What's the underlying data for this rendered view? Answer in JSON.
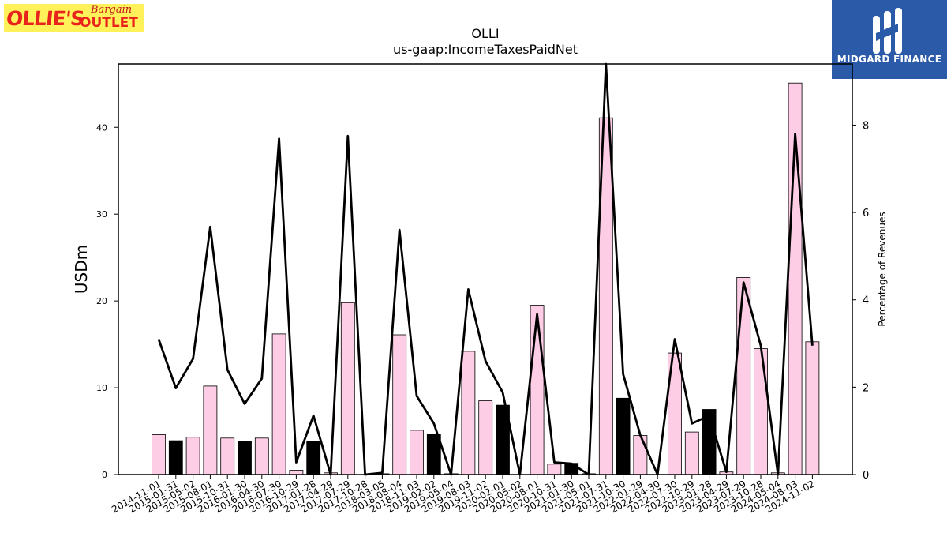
{
  "logos": {
    "left": {
      "word1": "OLLIE'S",
      "word2": "Bargain",
      "word3": "OUTLET"
    },
    "right": {
      "name": "MIDGARD FINANCE"
    }
  },
  "colors": {
    "bar_pink": "#fccde5",
    "bar_black": "#000000",
    "line": "#000000",
    "logo_blue": "#2b5aa8",
    "logo_yellow": "#fff15a",
    "logo_red": "#e8231c"
  },
  "chart_data": {
    "type": "bar",
    "title": "OLLI",
    "subtitle": "us-gaap:IncomeTaxesPaidNet",
    "ylabel": "USDm",
    "y2label": "Percentage of Revenues",
    "ylim": [
      0,
      47.3
    ],
    "y2lim": [
      0,
      9.4
    ],
    "yticks": [
      0,
      10,
      20,
      30,
      40
    ],
    "y2ticks": [
      0,
      2,
      4,
      6,
      8
    ],
    "categories": [
      "2014-11-01",
      "2015-01-31",
      "2015-05-02",
      "2015-08-01",
      "2015-10-31",
      "2016-01-30",
      "2016-04-30",
      "2016-07-30",
      "2016-10-29",
      "2017-01-28",
      "2017-04-29",
      "2017-07-29",
      "2017-10-28",
      "2018-03-05",
      "2018-08-04",
      "2018-11-03",
      "2019-02-02",
      "2019-05-04",
      "2019-08-03",
      "2019-11-02",
      "2020-02-01",
      "2020-05-02",
      "2020-08-01",
      "2020-10-31",
      "2021-01-30",
      "2021-05-01",
      "2021-07-31",
      "2021-10-30",
      "2022-01-29",
      "2022-04-30",
      "2022-07-30",
      "2022-10-29",
      "2023-01-28",
      "2023-04-29",
      "2023-07-29",
      "2023-10-28",
      "2024-05-04",
      "2024-08-03",
      "2024-11-02"
    ],
    "series": [
      {
        "kind": "bar",
        "values": [
          4.6,
          3.9,
          4.3,
          10.2,
          4.2,
          3.8,
          4.2,
          16.2,
          0.5,
          3.8,
          0.2,
          19.8,
          0.0,
          0.1,
          16.1,
          5.1,
          4.6,
          0.1,
          14.2,
          8.5,
          8.0,
          0.0,
          19.5,
          1.2,
          1.3,
          0.1,
          41.1,
          8.8,
          4.5,
          0.0,
          14.0,
          4.9,
          7.5,
          0.3,
          22.7,
          14.5,
          0.2,
          45.1,
          15.3
        ],
        "fiscal_q4": [
          false,
          true,
          false,
          false,
          false,
          true,
          false,
          false,
          false,
          true,
          false,
          false,
          false,
          false,
          false,
          false,
          true,
          false,
          false,
          false,
          true,
          false,
          false,
          false,
          true,
          false,
          false,
          true,
          false,
          false,
          false,
          false,
          true,
          false,
          false,
          false,
          false,
          false,
          false
        ]
      },
      {
        "kind": "line",
        "axis": "right",
        "values": [
          3.1,
          1.98,
          2.65,
          5.67,
          2.4,
          1.62,
          2.2,
          7.69,
          0.28,
          1.35,
          0.0,
          7.75,
          0.0,
          0.04,
          5.6,
          1.8,
          1.17,
          0.0,
          4.24,
          2.6,
          1.88,
          0.0,
          3.67,
          0.28,
          0.25,
          0.0,
          9.4,
          2.3,
          0.9,
          0.0,
          3.1,
          1.17,
          1.35,
          0.06,
          4.4,
          2.95,
          0.0,
          7.8,
          2.95
        ]
      }
    ],
    "grid": false
  }
}
